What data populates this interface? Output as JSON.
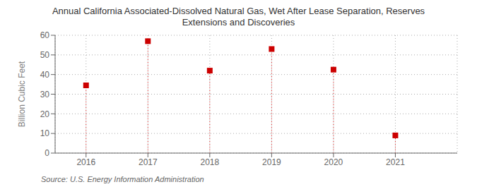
{
  "chart_data": {
    "type": "scatter",
    "title": "Annual California Associated-Dissolved Natural Gas, Wet After Lease Separation, Reserves\nExtensions and Discoveries",
    "y_label": "Billion Cubic Feet",
    "annotations": [
      "Source: U.S. Energy Information Administration"
    ],
    "x": [
      2016,
      2017,
      2018,
      2019,
      2020,
      2021
    ],
    "values": [
      34.5,
      57.0,
      42.0,
      53.0,
      42.5,
      9.0
    ],
    "xlim": [
      2015.5,
      2022.0
    ],
    "xticks": [
      2016,
      2017,
      2018,
      2019,
      2020,
      2021
    ],
    "ylim": [
      0,
      60
    ],
    "yticks": [
      0,
      10,
      20,
      30,
      40,
      50,
      60
    ],
    "color": "#CC0000",
    "marker": "square",
    "grid": true
  }
}
